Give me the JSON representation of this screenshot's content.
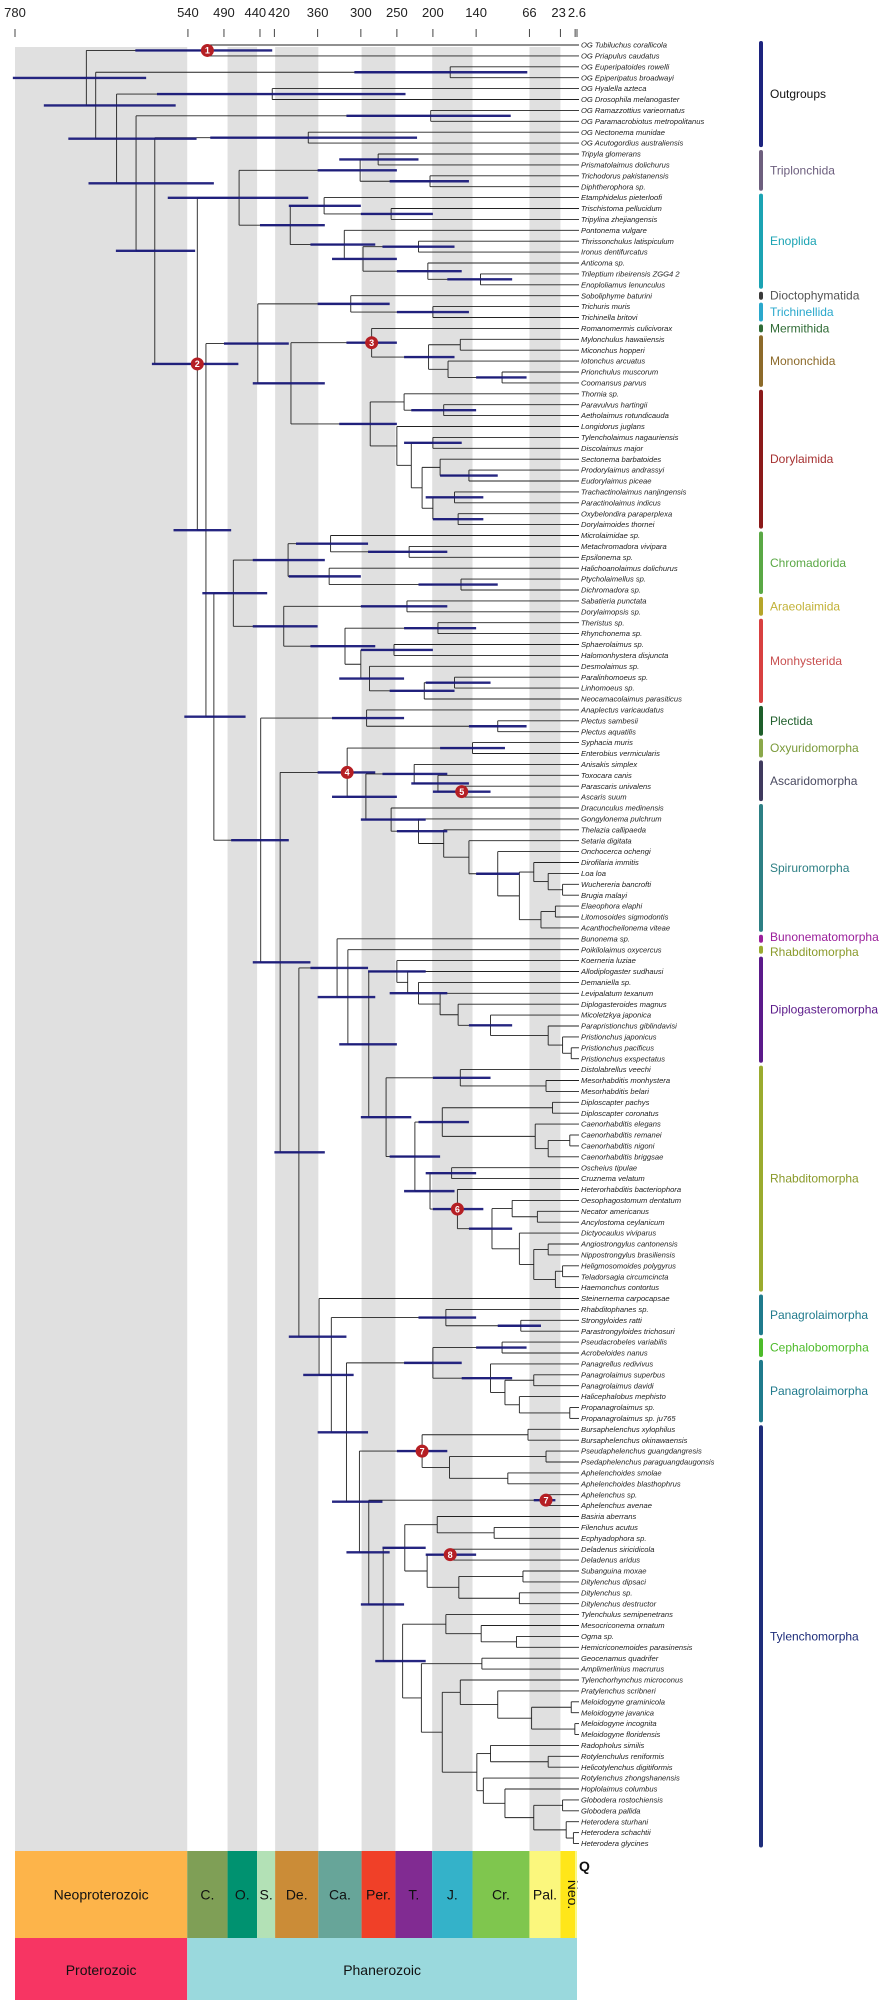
{
  "axis": {
    "ticks": [
      780,
      540,
      490,
      440,
      420,
      360,
      300,
      250,
      200,
      140,
      66,
      23,
      2.6
    ],
    "tick_labels": [
      "780",
      "540",
      "490",
      "440",
      "420",
      "360",
      "300",
      "250",
      "200",
      "140",
      "66",
      "23",
      "2.6"
    ],
    "present": 0
  },
  "taxa": [
    "OG Tubiluchus corallicola",
    "OG Priapulus caudatus",
    "OG Euperipatoides rowelli",
    "OG Epiperipatus broadwayi",
    "OG Hyalella azteca",
    "OG Drosophila melanogaster",
    "OG Ramazzottius varieornatus",
    "OG Paramacrobiotus metropolitanus",
    "OG Nectonema munidae",
    "OG Acutogordius australiensis",
    "Tripyla glomerans",
    "Prismatolaimus dolichurus",
    "Trichodorus pakistanensis",
    "Diphtherophora sp.",
    "Etamphidelus pieterloofi",
    "Trischistoma pellucidum",
    "Tripylina zhejiangensis",
    "Pontonema vulgare",
    "Thrissonchulus latispiculum",
    "Ironus dentifurcatus",
    "Anticoma sp.",
    "Trileptium ribeirensis ZGG4 2",
    "Enoploliamus lenunculus",
    "Soboliphyme baturini",
    "Trichuris muris",
    "Trichinella britovi",
    "Romanomermis culicivorax",
    "Mylonchulus hawaiiensis",
    "Miconchus hopperi",
    "Iotonchus arcuatus",
    "Prionchulus muscorum",
    "Coomansus parvus",
    "Thornia sp.",
    "Paravulvus hartingii",
    "Aetholaimus rotundicauda",
    "Longidorus juglans",
    "Tylencholaimus nagauriensis",
    "Discolaimus major",
    "Sectonema barbatoides",
    "Prodorylaimus andrassyi",
    "Eudorylaimus piceae",
    "Trachactinolaimus nanjingensis",
    "Paractinolaimus indicus",
    "Oxybelondira paraperplexa",
    "Dorylaimoides thornei",
    "Microlaimidae sp.",
    "Metachromadora vivipara",
    "Epsilonema sp.",
    "Halichoanolaimus dolichurus",
    "Ptycholaimellus sp.",
    "Dichromadora sp.",
    "Sabatieria punctata",
    "Dorylaimopsis sp.",
    "Theristus sp.",
    "Rhynchonema sp.",
    "Sphaerolaimus sp.",
    "Halomonhystera disjuncta",
    "Desmolaimus sp.",
    "Paralinhomoeus sp.",
    "Linhomoeus sp.",
    "Neocamacolaimus parasiticus",
    "Anaplectus varicaudatus",
    "Plectus sambesii",
    "Plectus aquatilis",
    "Syphacia muris",
    "Enterobius vermicularis",
    "Anisakis simplex",
    "Toxocara canis",
    "Parascaris univalens",
    "Ascaris suum",
    "Dracunculus medinensis",
    "Gongylonema pulchrum",
    "Thelazia callipaeda",
    "Setaria digitata",
    "Onchocerca ochengi",
    "Dirofilaria immitis",
    "Loa loa",
    "Wuchereria bancrofti",
    "Brugia malayi",
    "Elaeophora elaphi",
    "Litomosoides sigmodontis",
    "Acanthocheilonema viteae",
    "Bunonema sp.",
    "Poikilolaimus oxycercus",
    "Koerneria luziae",
    "Allodiplogaster sudhausi",
    "Demaniella sp.",
    "Levipalatum texanum",
    "Diplogasteroides magnus",
    "Micoletzkya japonica",
    "Parapristionchus giblindavisi",
    "Pristionchus japonicus",
    "Pristionchus pacificus",
    "Pristionchus exspectatus",
    "Distolabrellus veechi",
    "Mesorhabditis monhystera",
    "Mesorhabditis belari",
    "Diploscapter pachys",
    "Diploscapter coronatus",
    "Caenorhabditis elegans",
    "Caenorhabditis remanei",
    "Caenorhabditis nigoni",
    "Caenorhabditis briggsae",
    "Oscheius tipulae",
    "Cruznema velatum",
    "Heterorhabditis bacteriophora",
    "Oesophagostomum dentatum",
    "Necator americanus",
    "Ancylostoma ceylanicum",
    "Dictyocaulus viviparus",
    "Angiostrongylus cantonensis",
    "Nippostrongylus brasiliensis",
    "Heligmosomoides polygyrus",
    "Teladorsagia circumcincta",
    "Haemonchus contortus",
    "Steinernema carpocapsae",
    "Rhabditophanes sp.",
    "Strongyloides ratti",
    "Parastrongyloides trichosuri",
    "Pseudacrobeles variabilis",
    "Acrobeloides nanus",
    "Panagrellus redivivus",
    "Panagrolaimus superbus",
    "Panagrolaimus davidi",
    "Halicephalobus mephisto",
    "Propanagrolaimus sp.",
    "Propanagrolaimus sp. ju765",
    "Bursaphelenchus xylophilus",
    "Bursaphelenchus okinawaensis",
    "Pseudaphelenchus guangdangresis",
    "Psedaphelenchus paraguangdaugonsis",
    "Aphelenchoides smolae",
    "Aphelenchoides blasthophrus",
    "Aphelenchus sp.",
    "Aphelenchus avenae",
    "Basiria aberrans",
    "Filenchus acutus",
    "Ecphyadophora sp.",
    "Deladenus siricidicola",
    "Deladenus aridus",
    "Subanguina moxae",
    "Ditylenchus dipsaci",
    "Ditylenchus sp.",
    "Ditylenchus destructor",
    "Tylenchulus semipenetrans",
    "Mesocriconema ornatum",
    "Ogma sp.",
    "Hemicriconemoides parasinensis",
    "Geocenamus quadrifer",
    "Amplimerlinius macrurus",
    "Tylenchorhynchus microconus",
    "Pratylenchus scribneri",
    "Meloidogyne graminicola",
    "Meloidogyne javanica",
    "Meloidogyne incognita",
    "Meloidogyne floridensis",
    "Radopholus similis",
    "Rotylenchulus reniformis",
    "Helicotylenchus digitiformis",
    "Rotylenchus zhongshanensis",
    "Hoplolaimus columbus",
    "Globodera rostochiensis",
    "Globodera pallida",
    "Heterodera sturhani",
    "Heterodera schachtii",
    "Heterodera glycines"
  ],
  "tree": {
    "root": "((0,1)513[613,423]#1,((2,3)176[309,69],((4,5)423[583,238],((6,7)203[320,92],((8,9)373[509,222],(ENO,(DOR,CHR)515[560,480])527[590,470]#2)586[640,530])612[678,504])639[706,528])668[740,557])681[783,598]",
    "ENO": "(((10,11)276[330,220],(12,13)204[260,150])301[360,250],((14,(15,16)258[300,200])351[400,300],(17,((18,19)220[270,170],(20,(21,22)134[180,90])207[250,160])297[340,250])323[370,280])398[440,350])469[568,373]",
    "DOR": "((23,(24,25)200[250,150])314[360,260],((26,((27,28)162,(29,(30,31)104[140,70])179)206[240,170])285[320,250]#3,DORY)397[450,350])443[490,400]",
    "DORY": "((32,(33,34)185[230,140])240,(35,((36,37)200[240,160],((38,(39,40)150[190,110])190,((41,42)170[210,130],(43,44)165[200,130])200)215)230)250)287[330,250]",
    "CHR": "((CHROM,((51,52)236[300,180],MONH)407[450,360])477[520,430],((61,(62,63)110[150,70])292[340,240],RHAB)439[480,400])504[545,460]",
    "CHROM": "((45,(46,47)233[290,180])342[390,290],(48,(49,50)161[220,110])344[400,300])401[450,350]",
    "MONH": "((53,54)193[240,140],((55,56)254[300,200],(57,((58,59)170[210,120],60)212[260,170])288[330,240])300)322[370,280]",
    "RHAB": "(NFOUR,TYRH)412[450,370]",
    "NFOUR": "((64,65)145[190,100],((66,(67,(68,69)160[200,120]#5)193[230,150])226[270,180],(70,(71,(72,(73,ONCH)150)185)220[250,180])258[300,210])293[340,250])319[360,280]#4",
    "ONCH": "(74,((75,(76,(77,78)20)40)60,((79,80)30,81)50)80)110[140,80]",
    "TYRH": "(NBUN,TYL)386[420,350]",
    "NBUN": "(82,(83,(DIPLO,RHABM)289[330,250])318[360,280])333[370,290]",
    "DIPLO": "(84,(85,(86,(87,(88,(89,(90,(91,(92,93)8)20)40)120[150,90])165)190)220[260,180])235)250[290,210]",
    "RHABM": "((94,(95,96)43)162[200,120],(((97,98)34,(99,((100,101)10,102)40)58)187[220,150],((103,104)174[210,140],(105,STRONG)166[200,130]#6)204[240,170])225[260,190])265[300,230]",
    "STRONG": "((106,(107,108)55)90,(109,((110,111)40,((112,113)20,114)30)60)80)118[150,90]",
    "TYL": "(115,((116,(117,118)78[110,50])182[220,140],(PANC,TYLM)320[360,290])341[380,310])358[400,320]",
    "PANC": "((119,120)104[140,70],(121,((122,123)60,(124,(125,126)10)80)100)120[160,90])200[240,160]",
    "TYLM": "(((127,128)68,((129,130)43,(131,132)96)177)215[250,180]#7,((133,134)43[60,30]#7,NLAST)289[320,260])302[340,270]",
    "NLAST": "(((135,(136,137)115)194,((138,139)176[210,140]#8,((140,141)75,(142,143)80)164)208)239[270,210],((144,(145,(146,147)84)133)182,((148,149)132,((150,(151,((152,153)8,(154,155)3)63)110)162,((156,(157,158)40)120,(159,(160,((161,162)20,(163,(164,165)5)15)60)100)130)139)187)216)242[280,210])269[300,240]"
  },
  "clades": [
    {
      "label": "Outgroups",
      "from": 0,
      "to": 9,
      "color": "#1c237e",
      "label_color": "#111111"
    },
    {
      "label": "Triplonchida",
      "from": 10,
      "to": 13,
      "color": "#6d5f7e",
      "label_color": "#6d5f7e"
    },
    {
      "label": "Enoplida",
      "from": 14,
      "to": 22,
      "color": "#1ba3b3",
      "label_color": "#1ba3b3"
    },
    {
      "label": "Dioctophymatida",
      "from": 23,
      "to": 23,
      "color": "#3a3a3a",
      "label_color": "#555555"
    },
    {
      "label": "Trichinellida",
      "from": 24,
      "to": 25,
      "color": "#2aa8cc",
      "label_color": "#2aa8cc"
    },
    {
      "label": "Mermithida",
      "from": 26,
      "to": 26,
      "color": "#2f6b35",
      "label_color": "#2f6b35"
    },
    {
      "label": "Mononchida",
      "from": 27,
      "to": 31,
      "color": "#8c6a2a",
      "label_color": "#8c6a2a"
    },
    {
      "label": "Dorylaimida",
      "from": 32,
      "to": 44,
      "color": "#8b1a1a",
      "label_color": "#a53030"
    },
    {
      "label": "Chromadorida",
      "from": 45,
      "to": 50,
      "color": "#5aa845",
      "label_color": "#5aa845"
    },
    {
      "label": "Araeolaimida",
      "from": 51,
      "to": 52,
      "color": "#b5a52a",
      "label_color": "#c2b238"
    },
    {
      "label": "Monhysterida",
      "from": 53,
      "to": 60,
      "color": "#d84040",
      "label_color": "#c85050"
    },
    {
      "label": "Plectida",
      "from": 61,
      "to": 63,
      "color": "#1e5e2a",
      "label_color": "#1e5e2a"
    },
    {
      "label": "Oxyuridomorpha",
      "from": 64,
      "to": 65,
      "color": "#8aa84a",
      "label_color": "#7a9a3a"
    },
    {
      "label": "Ascaridomorpha",
      "from": 66,
      "to": 69,
      "color": "#3f3a5e",
      "label_color": "#4a4a60"
    },
    {
      "label": "Spiruromorpha",
      "from": 70,
      "to": 81,
      "color": "#2d7f84",
      "label_color": "#2d7f84"
    },
    {
      "label": "Bunonematomorpha",
      "from": 82,
      "to": 82,
      "color": "#9b1f9b",
      "label_color": "#9b1f9b"
    },
    {
      "label": "Rhabditomorpha",
      "from": 83,
      "to": 83,
      "color": "#9aab2f",
      "label_color": "#8a9a2a"
    },
    {
      "label": "Diplogasteromorpha",
      "from": 84,
      "to": 93,
      "color": "#5b1a8a",
      "label_color": "#5b1a8a"
    },
    {
      "label": "Rhabditomorpha",
      "from": 94,
      "to": 114,
      "color": "#9aab2f",
      "label_color": "#8a9a2a"
    },
    {
      "label": "Panagrolaimorpha",
      "from": 115,
      "to": 118,
      "color": "#1f7a8c",
      "label_color": "#1f7a8c"
    },
    {
      "label": "Cephalobomorpha",
      "from": 119,
      "to": 120,
      "color": "#4dbb2a",
      "label_color": "#4dbb2a"
    },
    {
      "label": "Panagrolaimorpha",
      "from": 121,
      "to": 126,
      "color": "#1f7a8c",
      "label_color": "#1f7a8c"
    },
    {
      "label": "Tylenchomorpha",
      "from": 127,
      "to": 165,
      "color": "#1e2d7a",
      "label_color": "#1e2d7a"
    }
  ],
  "periods": [
    {
      "label": "Neoproterozoic",
      "start": 780,
      "end": 541,
      "color": "#fdb44a",
      "shaded": true
    },
    {
      "label": "C.",
      "start": 541,
      "end": 485,
      "color": "#7f9f56",
      "shaded": false
    },
    {
      "label": "O.",
      "start": 485,
      "end": 444,
      "color": "#009270",
      "shaded": true
    },
    {
      "label": "S.",
      "start": 444,
      "end": 419,
      "color": "#b3e1b6",
      "shaded": false
    },
    {
      "label": "De.",
      "start": 419,
      "end": 359,
      "color": "#cb8c37",
      "shaded": true
    },
    {
      "label": "Ca.",
      "start": 359,
      "end": 299,
      "color": "#67a599",
      "shaded": false
    },
    {
      "label": "Per.",
      "start": 299,
      "end": 252,
      "color": "#f04028",
      "shaded": true
    },
    {
      "label": "T.",
      "start": 252,
      "end": 201,
      "color": "#812b92",
      "shaded": false
    },
    {
      "label": "J.",
      "start": 201,
      "end": 145,
      "color": "#34b2c9",
      "shaded": true
    },
    {
      "label": "Cr.",
      "start": 145,
      "end": 66,
      "color": "#7fc64e",
      "shaded": false
    },
    {
      "label": "Pal.",
      "start": 66,
      "end": 23,
      "color": "#fbf77d",
      "shaded": true
    },
    {
      "label": "Neo.",
      "start": 23,
      "end": 2.6,
      "color": "#ffe619",
      "shaded": false
    },
    {
      "label": "Q",
      "start": 2.6,
      "end": 0,
      "color": "#f9f97f",
      "shaded": false
    }
  ],
  "eons": [
    {
      "label": "Proterozoic",
      "start": 780,
      "end": 541,
      "color": "#f73563"
    },
    {
      "label": "Phanerozoic",
      "start": 541,
      "end": 0,
      "color": "#9ad9dd"
    }
  ],
  "colors": {
    "branch": "#222222",
    "hpd": "#1a1a7a",
    "marker": "#b51f24",
    "shade": "#e0e0e0"
  }
}
